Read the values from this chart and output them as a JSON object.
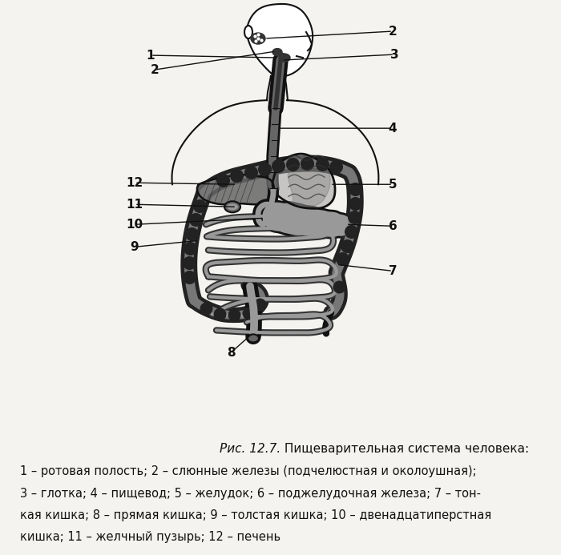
{
  "title_italic": "Рис. 12.7.",
  "title_normal": " Пищеварительная система человека:",
  "caption_lines": [
    "1 – ротовая полость; 2 – слюнные железы (подчелюстная и околоушная);",
    "3 – глотка; 4 – пищевод; 5 – желудок; 6 – поджелудочная железа; 7 – тон-",
    "кая кишка; 8 – прямая кишка; 9 – толстая кишка; 10 – двенадцатиперстная",
    "кишка; 11 – желчный пузырь; 12 – печень"
  ],
  "bg_color": "#f5f3ef",
  "dark": "#111111",
  "figsize": [
    7.0,
    6.93
  ],
  "dpi": 100
}
